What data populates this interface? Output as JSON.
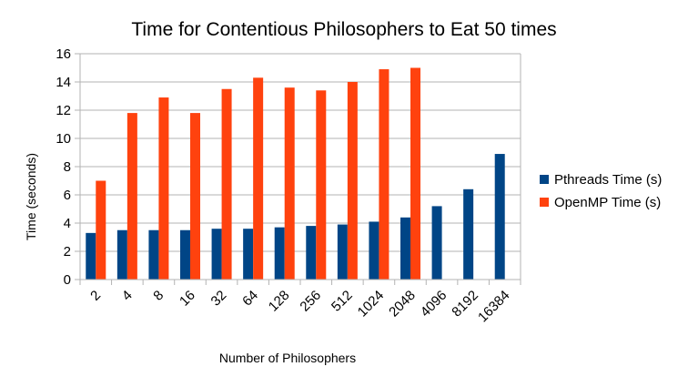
{
  "chart_data": {
    "type": "bar",
    "title": "Time for Contentious Philosophers to Eat 50 times",
    "xlabel": "Number of Philosophers",
    "ylabel": "Time (seconds)",
    "ylim": [
      0,
      16
    ],
    "yticks": [
      0,
      2,
      4,
      6,
      8,
      10,
      12,
      14,
      16
    ],
    "grid": true,
    "legend_position": "right",
    "categories": [
      "2",
      "4",
      "8",
      "16",
      "32",
      "64",
      "128",
      "256",
      "512",
      "1024",
      "2048",
      "4096",
      "8192",
      "16384"
    ],
    "series": [
      {
        "name": "Pthreads Time (s)",
        "color": "#004586",
        "values": [
          3.3,
          3.5,
          3.5,
          3.5,
          3.6,
          3.6,
          3.7,
          3.8,
          3.9,
          4.1,
          4.4,
          5.2,
          6.4,
          8.9
        ]
      },
      {
        "name": "OpenMP Time (s)",
        "color": "#ff420e",
        "values": [
          7.0,
          11.8,
          12.9,
          11.8,
          13.5,
          14.3,
          13.6,
          13.4,
          14.0,
          14.9,
          15.0,
          null,
          null,
          null
        ]
      }
    ]
  }
}
